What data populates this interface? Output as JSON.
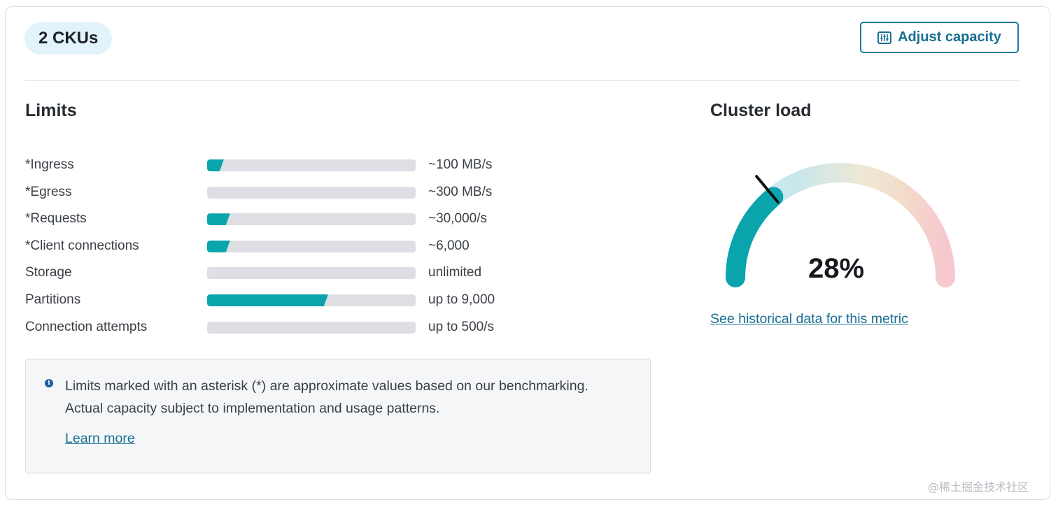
{
  "header": {
    "cku_badge": "2 CKUs",
    "adjust_button_label": "Adjust capacity"
  },
  "limits": {
    "title": "Limits",
    "rows": [
      {
        "label": "*Ingress",
        "value": "~100 MB/s",
        "usage_fraction": 0.08
      },
      {
        "label": "*Egress",
        "value": "~300 MB/s",
        "usage_fraction": 0.0
      },
      {
        "label": "*Requests",
        "value": "~30,000/s",
        "usage_fraction": 0.11
      },
      {
        "label": "*Client connections",
        "value": "~6,000",
        "usage_fraction": 0.11
      },
      {
        "label": "Storage",
        "value": "unlimited",
        "usage_fraction": 0.0
      },
      {
        "label": "Partitions",
        "value": "up to 9,000",
        "usage_fraction": 0.58
      },
      {
        "label": "Connection attempts",
        "value": "up to 500/s",
        "usage_fraction": 0.0
      }
    ]
  },
  "info": {
    "text": "Limits marked with an asterisk (*) are approximate values based on our benchmarking. Actual capacity subject to implementation and usage patterns.",
    "learn_more": "Learn more"
  },
  "cluster_load": {
    "title": "Cluster load",
    "percent_label": "28%",
    "percent": 28,
    "historical_link": "See historical data for this metric"
  },
  "colors": {
    "accent": "#0aa4ac",
    "link": "#1a6f93",
    "track": "#dddfe4"
  },
  "watermark": "@稀土掘金技术社区"
}
